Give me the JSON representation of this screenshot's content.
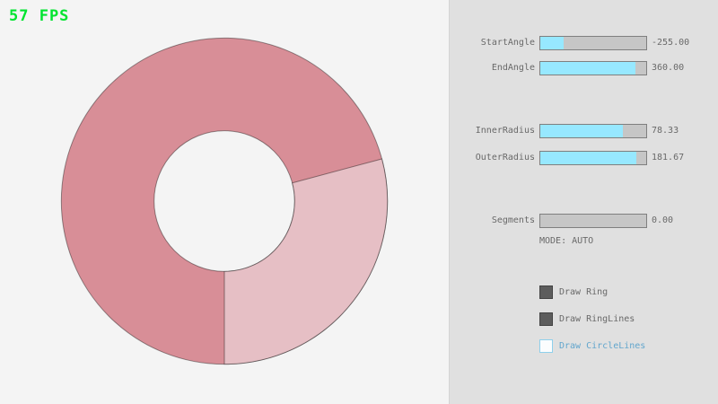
{
  "fps": "57 FPS",
  "colors": {
    "fps_green": "#00e42f",
    "page_bg": "#f4f4f4",
    "panel_bg": "#e0e0e0",
    "ring_dark": "#d88e97",
    "ring_light": "#e6bfc5",
    "ring_line": "rgba(0,0,0,0.40)",
    "slider_fill": "#97e8ff",
    "slider_track": "#c6c6c6",
    "text_gray": "#696969",
    "focus_blue": "#62a6cd"
  },
  "ring": {
    "center_note": "donut ring drawn on left canvas",
    "inner_radius": 78.33,
    "outer_radius": 181.67,
    "start_angle": -255,
    "end_angle": 360,
    "wedge_start": 0,
    "wedge_end": 105
  },
  "controls": {
    "sliders": [
      {
        "label": "StartAngle",
        "value": "-255.00",
        "fill_pct": 21.7
      },
      {
        "label": "EndAngle",
        "value": "360.00",
        "fill_pct": 90.0
      },
      {
        "label": "InnerRadius",
        "value": "78.33",
        "fill_pct": 78.3
      },
      {
        "label": "OuterRadius",
        "value": "181.67",
        "fill_pct": 90.8
      },
      {
        "label": "Segments",
        "value": "0.00",
        "fill_pct": 0
      }
    ],
    "mode_text": "MODE: AUTO",
    "checkboxes": [
      {
        "label": "Draw Ring",
        "checked": true,
        "label_color": "#696969"
      },
      {
        "label": "Draw RingLines",
        "checked": true,
        "label_color": "#696969"
      },
      {
        "label": "Draw CircleLines",
        "checked": false,
        "label_color": "#62a6cd"
      }
    ]
  }
}
